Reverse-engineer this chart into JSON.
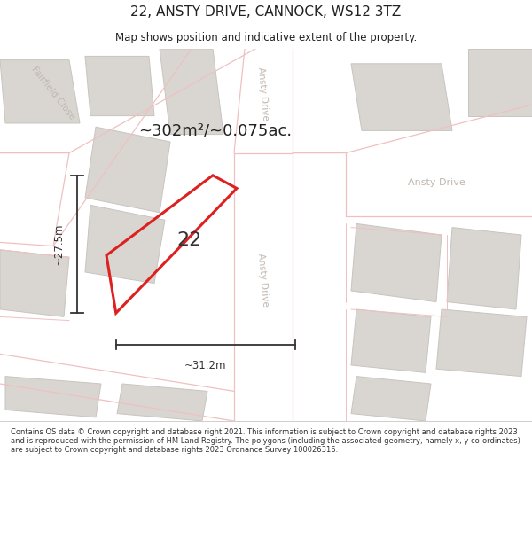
{
  "title": "22, ANSTY DRIVE, CANNOCK, WS12 3TZ",
  "subtitle": "Map shows position and indicative extent of the property.",
  "area_text": "~302m²/~0.075ac.",
  "label_22": "22",
  "dim_width": "~31.2m",
  "dim_height": "~27.5m",
  "footer": "Contains OS data © Crown copyright and database right 2021. This information is subject to Crown copyright and database rights 2023 and is reproduced with the permission of HM Land Registry. The polygons (including the associated geometry, namely x, y co-ordinates) are subject to Crown copyright and database rights 2023 Ordnance Survey 100026316.",
  "bg_color": "#ffffff",
  "map_bg": "#f2f0ee",
  "road_color": "#ffffff",
  "building_color": "#d9d6d1",
  "building_outline": "#c8c5c0",
  "red_outline": "#dd2020",
  "road_line_color": "#f0c0c0",
  "title_color": "#222222",
  "footer_color": "#333333",
  "street_label_color": "#c0b8b0",
  "dim_color": "#333333"
}
